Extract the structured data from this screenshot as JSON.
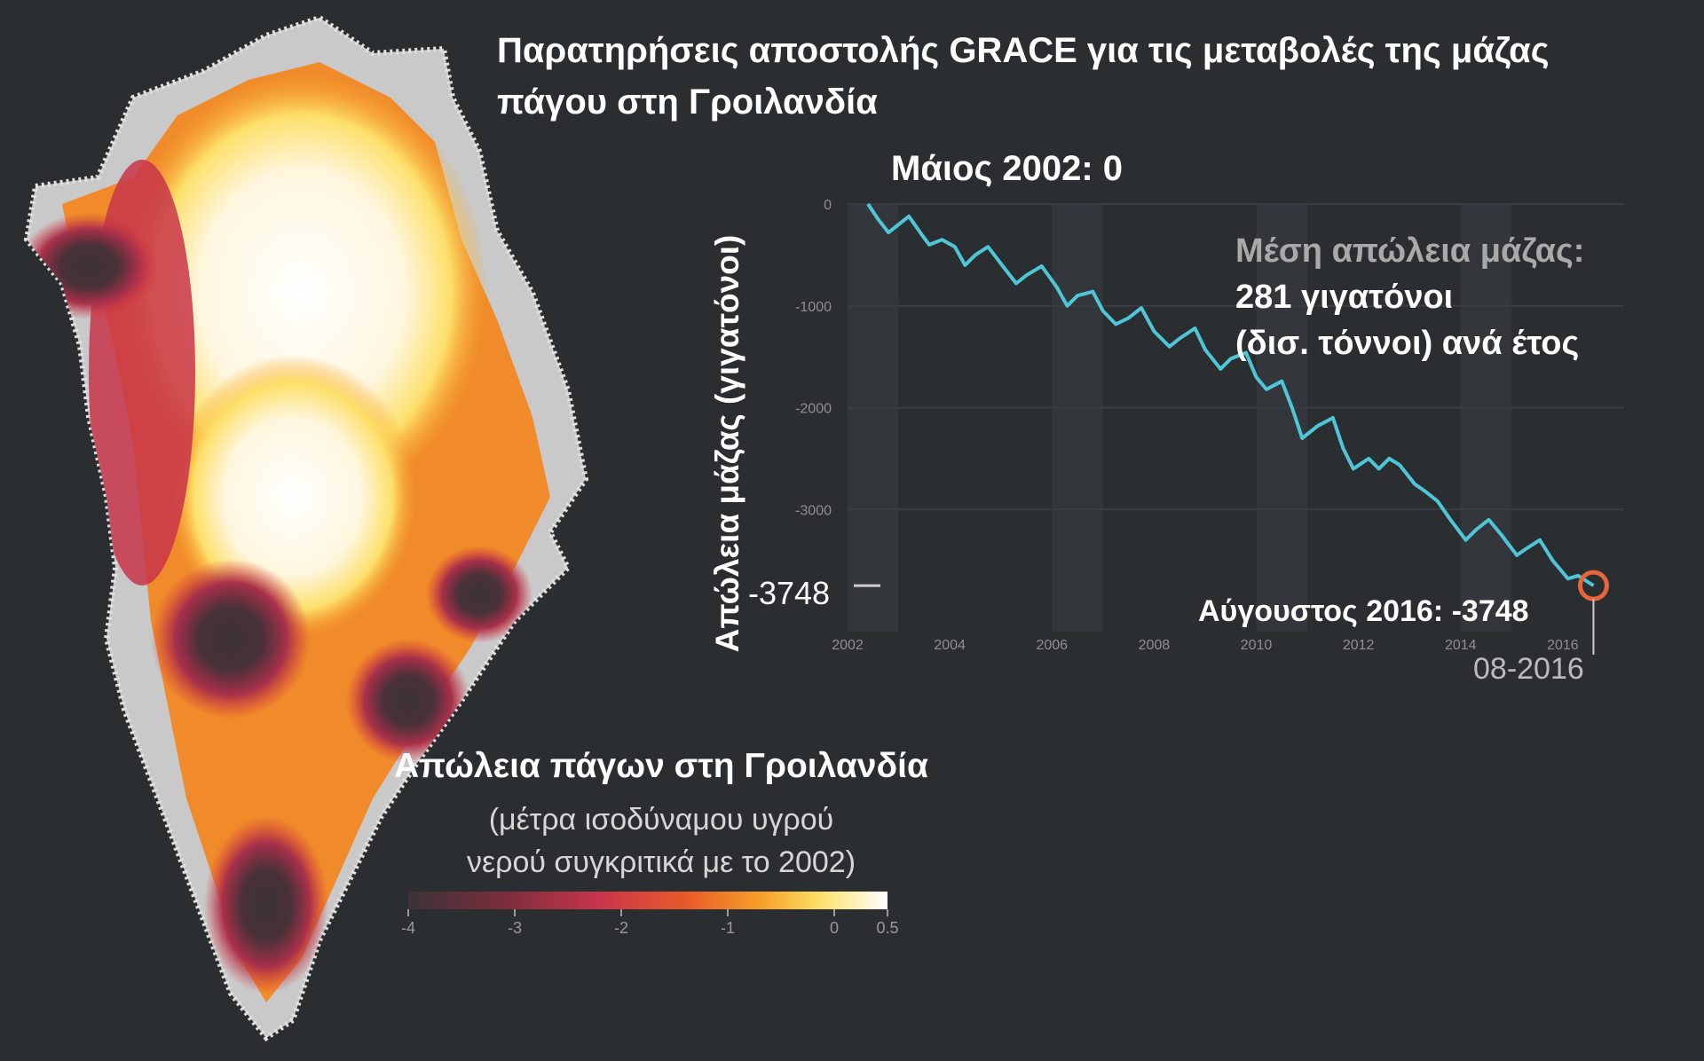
{
  "title": "Παρατηρήσεις αποστολής GRACE για τις μεταβολές της μάζας πάγου στη Γροιλανδία",
  "map_legend": {
    "title": "Απώλεια πάγων στη Γροιλανδία",
    "subtitle_line1": "(μέτρα ισοδύναμου υγρού",
    "subtitle_line2": "νερού συγκριτικά με το 2002)",
    "ticks": [
      "-4",
      "-3",
      "-2",
      "-1",
      "0",
      "0.5"
    ],
    "colors": [
      "#3b3338",
      "#7a2e3c",
      "#c8354a",
      "#e85a2a",
      "#f7a12a",
      "#fde06a",
      "#ffffff"
    ]
  },
  "annotations": {
    "start": "Μάιος 2002: 0",
    "average_label": "Μέση απώλεια μάζας:",
    "average_line1": "281 γιγατόνοι",
    "average_line2": "(δισ. τόννοι) ανά έτος",
    "end": "Αύγουστος 2016: -3748",
    "end_date": "08-2016",
    "marked_value": "-3748"
  },
  "colors": {
    "background": "#2b2e31",
    "line": "#4fc6d8",
    "highlight": "#e8643a",
    "grid_band": "#33373b"
  },
  "chart_data": {
    "type": "line",
    "xlabel": "",
    "ylabel": "Απώλεια μάζας (γιγατόνοι)",
    "xlim": [
      2002.0,
      2017.2
    ],
    "ylim": [
      -4200,
      0
    ],
    "yticks": [
      0,
      -1000,
      -2000,
      -3000
    ],
    "ytick_labels": [
      "0",
      "-1000",
      "-2000",
      "-3000"
    ],
    "xticks": [
      2002,
      2004,
      2006,
      2008,
      2010,
      2012,
      2014,
      2016
    ],
    "xtick_labels": [
      "2002",
      "2004",
      "2006",
      "2008",
      "2010",
      "2012",
      "2014",
      "2016"
    ],
    "series": [
      {
        "x": [
          2002.4,
          2002.6,
          2002.8,
          2003.0,
          2003.2,
          2003.45,
          2003.6,
          2003.85,
          2004.1,
          2004.3,
          2004.5,
          2004.75,
          2005.1,
          2005.3,
          2005.5,
          2005.8,
          2006.1,
          2006.3,
          2006.5,
          2006.8,
          2007.0,
          2007.25,
          2007.5,
          2007.75,
          2008.0,
          2008.3,
          2008.5,
          2008.8,
          2009.0,
          2009.3,
          2009.5,
          2009.8,
          2010.0,
          2010.2,
          2010.5,
          2010.7,
          2010.9,
          2011.2,
          2011.5,
          2011.7,
          2011.9,
          2012.2,
          2012.4,
          2012.6,
          2012.8,
          2013.1,
          2013.3,
          2013.55,
          2013.8,
          2014.1,
          2014.3,
          2014.55,
          2014.8,
          2015.1,
          2015.3,
          2015.55,
          2015.8,
          2016.1,
          2016.3,
          2016.6
        ],
        "values": [
          0,
          -150,
          -280,
          -200,
          -120,
          -300,
          -400,
          -350,
          -420,
          -600,
          -500,
          -420,
          -650,
          -780,
          -700,
          -610,
          -820,
          -1000,
          -900,
          -860,
          -1050,
          -1180,
          -1120,
          -1020,
          -1250,
          -1400,
          -1320,
          -1220,
          -1430,
          -1620,
          -1520,
          -1460,
          -1700,
          -1820,
          -1740,
          -2000,
          -2300,
          -2180,
          -2100,
          -2400,
          -2600,
          -2500,
          -2600,
          -2500,
          -2560,
          -2750,
          -2820,
          -2920,
          -3100,
          -3300,
          -3200,
          -3100,
          -3250,
          -3450,
          -3380,
          -3300,
          -3500,
          -3680,
          -3650,
          -3748
        ]
      }
    ]
  }
}
